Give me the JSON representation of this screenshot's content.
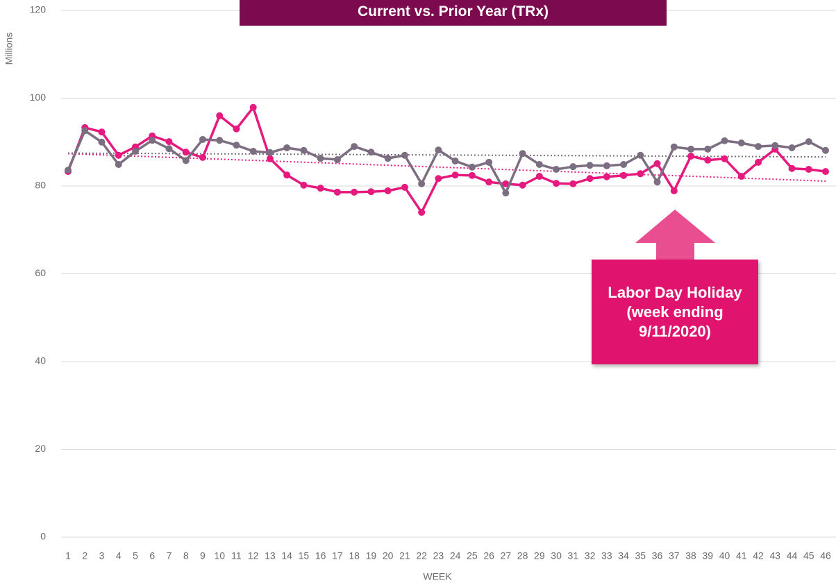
{
  "chart_data": {
    "type": "line",
    "title": "Current vs. Prior Year (TRx)",
    "y_axis_label": "Millions",
    "x_axis_label": "WEEK",
    "annotation": "Labor Day Holiday (week ending 9/11/2020)",
    "categories": [
      "1",
      "2",
      "3",
      "4",
      "5",
      "6",
      "7",
      "8",
      "9",
      "10",
      "11",
      "12",
      "13",
      "14",
      "15",
      "16",
      "17",
      "18",
      "19",
      "20",
      "21",
      "22",
      "23",
      "24",
      "25",
      "26",
      "27",
      "28",
      "29",
      "30",
      "31",
      "32",
      "33",
      "34",
      "35",
      "36",
      "37",
      "38",
      "39",
      "40",
      "41",
      "42",
      "43",
      "44",
      "45",
      "46"
    ],
    "series": [
      {
        "color": "#e5197e",
        "values": [
          83.3,
          93.3,
          92.3,
          87.0,
          88.9,
          91.4,
          90.1,
          87.7,
          86.5,
          96.0,
          93.0,
          97.9,
          86.2,
          82.5,
          80.2,
          79.5,
          78.6,
          78.6,
          78.7,
          78.9,
          79.7,
          74.0,
          81.7,
          82.5,
          82.4,
          80.9,
          80.5,
          80.2,
          82.2,
          80.6,
          80.5,
          81.7,
          82.1,
          82.4,
          82.8,
          85.1,
          78.9,
          86.8,
          85.9,
          86.2,
          82.2,
          85.4,
          88.4,
          84.0,
          83.8,
          83.3
        ]
      },
      {
        "color": "#7a6e80",
        "values": [
          83.6,
          92.6,
          90.0,
          84.9,
          87.9,
          90.4,
          88.5,
          85.8,
          90.6,
          90.4,
          89.3,
          87.9,
          87.6,
          88.7,
          88.1,
          86.3,
          86.0,
          89.0,
          87.7,
          86.3,
          87.0,
          80.5,
          88.2,
          85.7,
          84.3,
          85.4,
          78.4,
          87.4,
          84.9,
          83.8,
          84.4,
          84.7,
          84.6,
          84.9,
          87.0,
          80.9,
          88.9,
          88.4,
          88.4,
          90.3,
          89.8,
          89.0,
          89.2,
          88.7,
          90.1,
          88.1
        ]
      }
    ],
    "trendline": true,
    "ylim": [
      0,
      120
    ],
    "yticks": [
      0,
      20,
      40,
      60,
      80,
      100,
      120
    ],
    "grid": true
  }
}
